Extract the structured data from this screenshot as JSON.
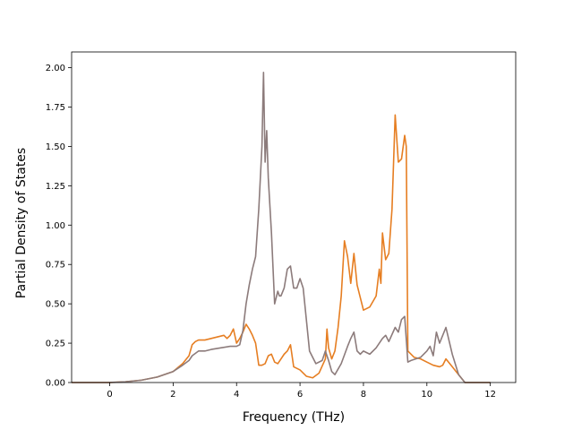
{
  "chart_data": {
    "type": "line",
    "title": "",
    "xlabel": "Frequency (THz)",
    "ylabel": "Partial Density of States",
    "xlim": [
      -1.2,
      12.8
    ],
    "ylim": [
      0,
      2.1
    ],
    "xticks": [
      0,
      2,
      4,
      6,
      8,
      10,
      12
    ],
    "xtick_labels": [
      "0",
      "2",
      "4",
      "6",
      "8",
      "10",
      "12"
    ],
    "yticks": [
      0,
      0.25,
      0.5,
      0.75,
      1.0,
      1.25,
      1.5,
      1.75,
      2.0
    ],
    "ytick_labels": [
      "0.00",
      "0.25",
      "0.50",
      "0.75",
      "1.00",
      "1.25",
      "1.50",
      "1.75",
      "2.00"
    ],
    "grid": false,
    "legend": "none",
    "series": [
      {
        "color": "#e67e22",
        "x": [
          -1.2,
          0,
          0.5,
          1,
          1.5,
          2,
          2.3,
          2.5,
          2.6,
          2.7,
          2.8,
          3.0,
          3.2,
          3.4,
          3.6,
          3.7,
          3.8,
          3.9,
          4.0,
          4.1,
          4.2,
          4.3,
          4.4,
          4.5,
          4.6,
          4.7,
          4.8,
          4.9,
          5.0,
          5.1,
          5.2,
          5.3,
          5.4,
          5.5,
          5.6,
          5.7,
          5.8,
          6.0,
          6.2,
          6.4,
          6.6,
          6.8,
          6.85,
          6.9,
          7.0,
          7.1,
          7.2,
          7.3,
          7.4,
          7.5,
          7.6,
          7.7,
          7.8,
          8.0,
          8.2,
          8.4,
          8.5,
          8.55,
          8.6,
          8.7,
          8.8,
          8.9,
          9.0,
          9.1,
          9.2,
          9.3,
          9.35,
          9.4,
          9.6,
          9.8,
          10.0,
          10.2,
          10.4,
          10.5,
          10.6,
          10.8,
          11.0,
          11.2,
          12.0
        ],
        "y": [
          0,
          0,
          0.005,
          0.015,
          0.035,
          0.07,
          0.12,
          0.17,
          0.24,
          0.26,
          0.27,
          0.27,
          0.28,
          0.29,
          0.3,
          0.28,
          0.3,
          0.34,
          0.25,
          0.28,
          0.32,
          0.37,
          0.34,
          0.3,
          0.25,
          0.11,
          0.11,
          0.12,
          0.17,
          0.18,
          0.13,
          0.12,
          0.15,
          0.18,
          0.2,
          0.24,
          0.1,
          0.08,
          0.04,
          0.03,
          0.06,
          0.15,
          0.34,
          0.22,
          0.15,
          0.2,
          0.35,
          0.55,
          0.9,
          0.8,
          0.63,
          0.82,
          0.62,
          0.46,
          0.48,
          0.55,
          0.72,
          0.63,
          0.95,
          0.78,
          0.82,
          1.1,
          1.7,
          1.4,
          1.42,
          1.57,
          1.5,
          0.2,
          0.16,
          0.15,
          0.13,
          0.11,
          0.1,
          0.11,
          0.15,
          0.1,
          0.05,
          0,
          0
        ]
      },
      {
        "color": "#8c7b7b",
        "x": [
          -1.2,
          0,
          0.5,
          1,
          1.5,
          2,
          2.3,
          2.5,
          2.6,
          2.8,
          3.0,
          3.2,
          3.5,
          3.8,
          4.0,
          4.1,
          4.2,
          4.3,
          4.4,
          4.5,
          4.6,
          4.7,
          4.8,
          4.85,
          4.9,
          4.95,
          5.0,
          5.1,
          5.2,
          5.3,
          5.35,
          5.4,
          5.5,
          5.6,
          5.7,
          5.8,
          5.9,
          6.0,
          6.1,
          6.3,
          6.5,
          6.7,
          6.8,
          6.9,
          7.0,
          7.1,
          7.3,
          7.5,
          7.6,
          7.7,
          7.8,
          7.9,
          8.0,
          8.2,
          8.4,
          8.6,
          8.7,
          8.8,
          9.0,
          9.1,
          9.2,
          9.3,
          9.4,
          9.5,
          9.8,
          10.0,
          10.1,
          10.2,
          10.3,
          10.4,
          10.5,
          10.6,
          10.8,
          11.0,
          11.2,
          12.0
        ],
        "y": [
          0,
          0,
          0.005,
          0.015,
          0.035,
          0.07,
          0.11,
          0.14,
          0.17,
          0.2,
          0.2,
          0.21,
          0.22,
          0.23,
          0.23,
          0.24,
          0.33,
          0.5,
          0.62,
          0.72,
          0.8,
          1.1,
          1.5,
          1.97,
          1.4,
          1.6,
          1.3,
          0.95,
          0.5,
          0.58,
          0.55,
          0.55,
          0.6,
          0.72,
          0.74,
          0.6,
          0.6,
          0.66,
          0.6,
          0.2,
          0.12,
          0.14,
          0.2,
          0.14,
          0.07,
          0.05,
          0.12,
          0.23,
          0.28,
          0.32,
          0.2,
          0.18,
          0.2,
          0.18,
          0.22,
          0.28,
          0.3,
          0.26,
          0.35,
          0.32,
          0.4,
          0.42,
          0.13,
          0.14,
          0.16,
          0.2,
          0.23,
          0.17,
          0.32,
          0.25,
          0.3,
          0.35,
          0.18,
          0.05,
          0,
          0
        ]
      }
    ]
  }
}
